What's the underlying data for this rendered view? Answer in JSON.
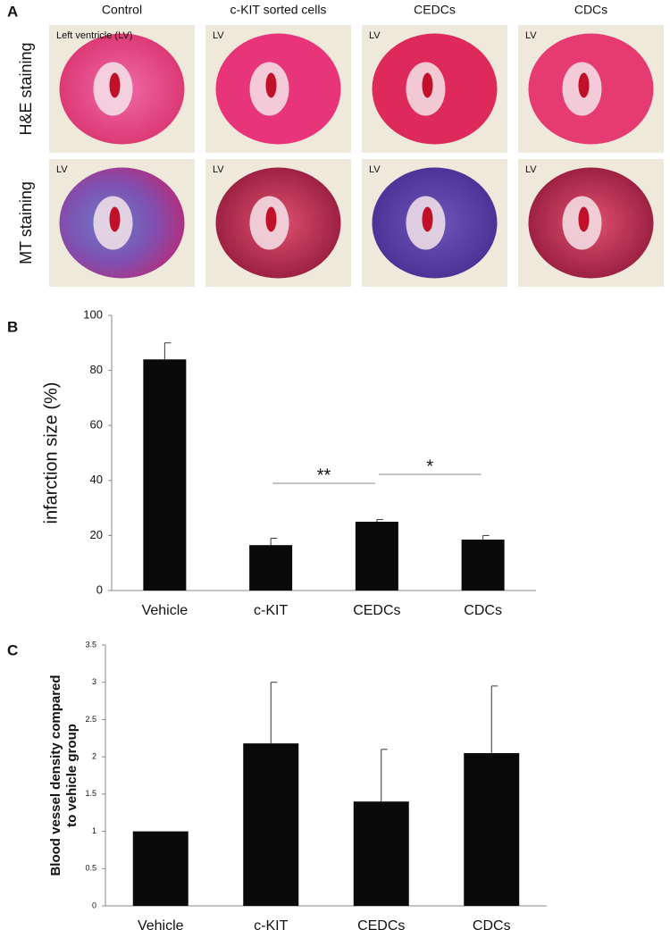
{
  "panel_a": {
    "letter": "A",
    "columns": [
      "Control",
      "c-KIT sorted cells",
      "CEDCs",
      "CDCs"
    ],
    "rows": [
      "H&E staining",
      "MT staining"
    ],
    "image_labels": [
      "Left ventricle (LV)",
      "LV",
      "LV",
      "LV",
      "LV",
      "LV",
      "LV",
      "LV"
    ]
  },
  "chart_data": [
    {
      "type": "bar",
      "letter": "B",
      "ylabel": [
        "infarction size (%)"
      ],
      "categories": [
        "Vehicle",
        "c-KIT",
        "CEDCs",
        "CDCs"
      ],
      "values": [
        84,
        16.5,
        25,
        18.5
      ],
      "errors": [
        6,
        2.5,
        0.8,
        1.5
      ],
      "color": "#0a0a0a",
      "ylim": [
        0,
        100
      ],
      "yticks": [
        0,
        20,
        40,
        60,
        80,
        100
      ],
      "annotations": [
        "**",
        "*"
      ]
    },
    {
      "type": "bar",
      "letter": "C",
      "ylabel": [
        "Blood vessel density compared",
        "to vehicle group"
      ],
      "categories": [
        "Vehicle",
        "c-KIT",
        "CEDCs",
        "CDCs"
      ],
      "values": [
        1,
        2.18,
        1.4,
        2.05
      ],
      "errors": [
        null,
        0.82,
        0.7,
        0.9
      ],
      "color": "#0a0a0a",
      "ylim": [
        0,
        3.5
      ],
      "yticks": [
        0,
        0.5,
        1,
        1.5,
        2,
        2.5,
        3,
        3.5
      ]
    }
  ]
}
